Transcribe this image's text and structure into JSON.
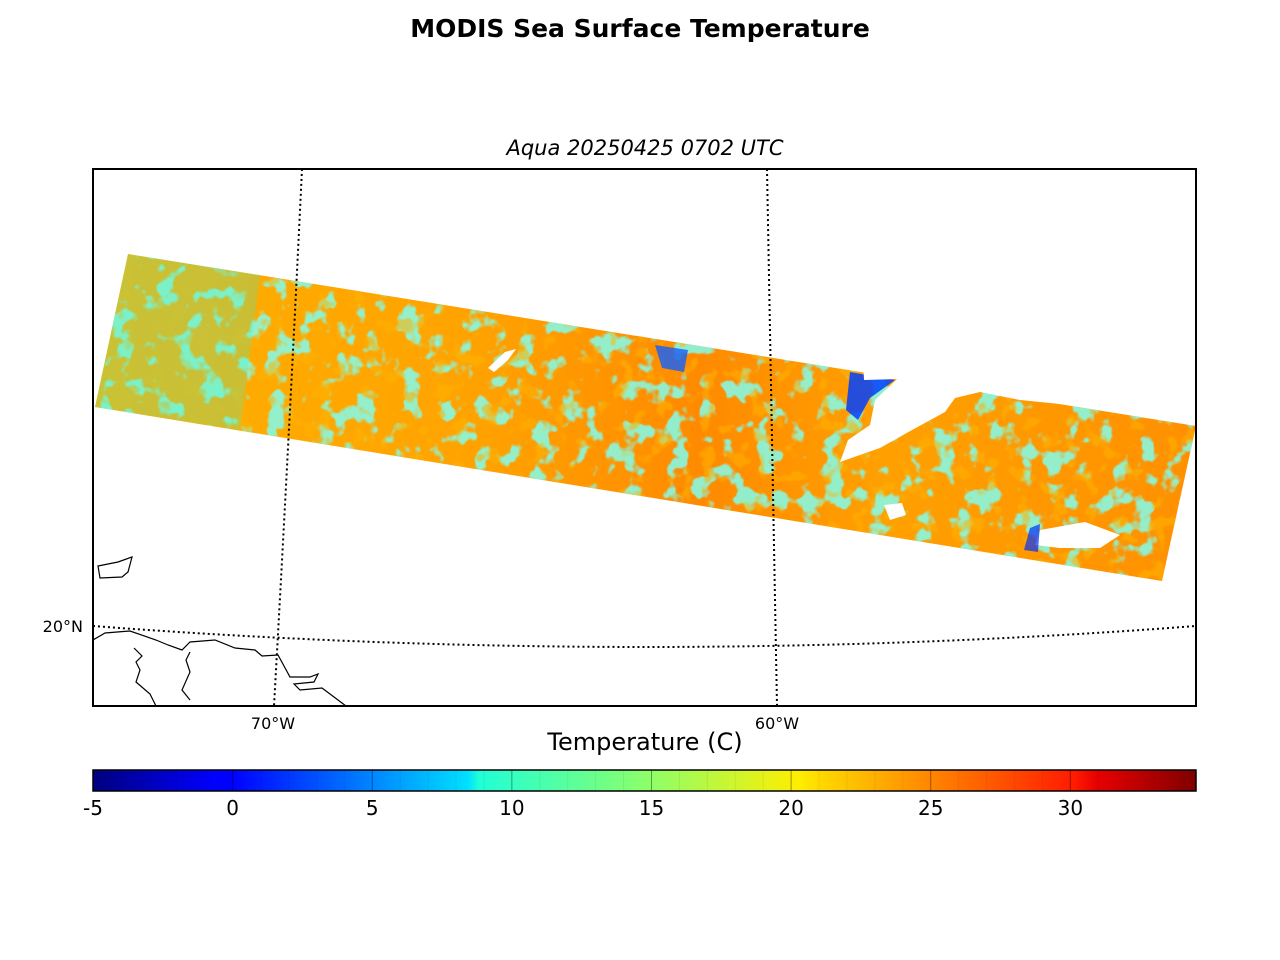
{
  "title": "MODIS Sea Surface Temperature",
  "subtitle": "Aqua 20250425 0702 UTC",
  "map": {
    "lat_labels": [
      "20°N"
    ],
    "lon_labels": [
      "70°W",
      "60°W"
    ]
  },
  "colorbar": {
    "label": "Temperature (C)",
    "min": -5,
    "max": 34.5,
    "ticks": [
      -5,
      0,
      5,
      10,
      15,
      20,
      25,
      30
    ],
    "colormap": "jet"
  },
  "colors": {
    "frame": "#000000",
    "coastline": "#000000",
    "cloud_mask": "#ffffff",
    "warm_core": "#ff8c00",
    "warm": "#ffa500",
    "cool": "#40f0c0",
    "cold": "#0030ff"
  }
}
